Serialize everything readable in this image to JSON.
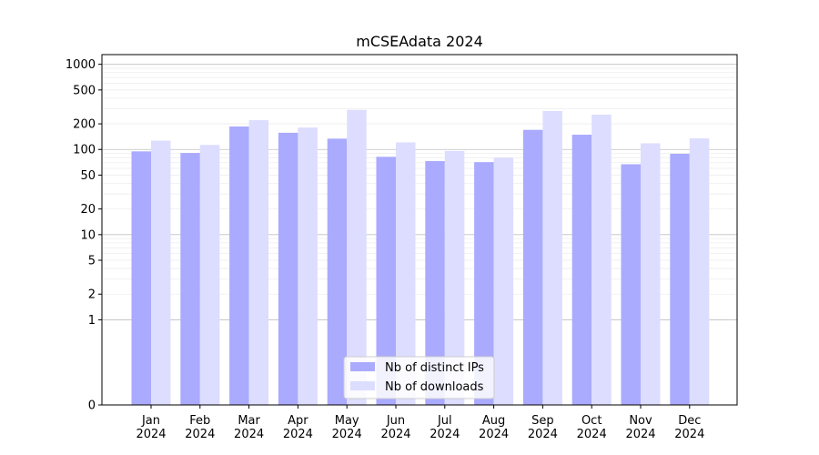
{
  "chart_data": {
    "type": "bar",
    "title": "mCSEAdata 2024",
    "xlabel": "",
    "ylabel": "",
    "y_scale": "symlog",
    "categories": [
      "Jan\n2024",
      "Feb\n2024",
      "Mar\n2024",
      "Apr\n2024",
      "May\n2024",
      "Jun\n2024",
      "Jul\n2024",
      "Aug\n2024",
      "Sep\n2024",
      "Oct\n2024",
      "Nov\n2024",
      "Dec\n2024"
    ],
    "series": [
      {
        "name": "Nb of distinct IPs",
        "color": "#aaaaff",
        "values": [
          95,
          91,
          186,
          157,
          134,
          82,
          73,
          71,
          170,
          149,
          67,
          89
        ]
      },
      {
        "name": "Nb of downloads",
        "color": "#ddddff",
        "values": [
          127,
          113,
          221,
          181,
          292,
          121,
          96,
          80,
          283,
          256,
          118,
          135
        ]
      }
    ],
    "yticks": [
      "0",
      "1",
      "2",
      "5",
      "10",
      "20",
      "50",
      "100",
      "200",
      "500",
      "1000"
    ],
    "ylim": [
      0,
      1300
    ],
    "grid": true,
    "legend_position": "bottom-center"
  }
}
